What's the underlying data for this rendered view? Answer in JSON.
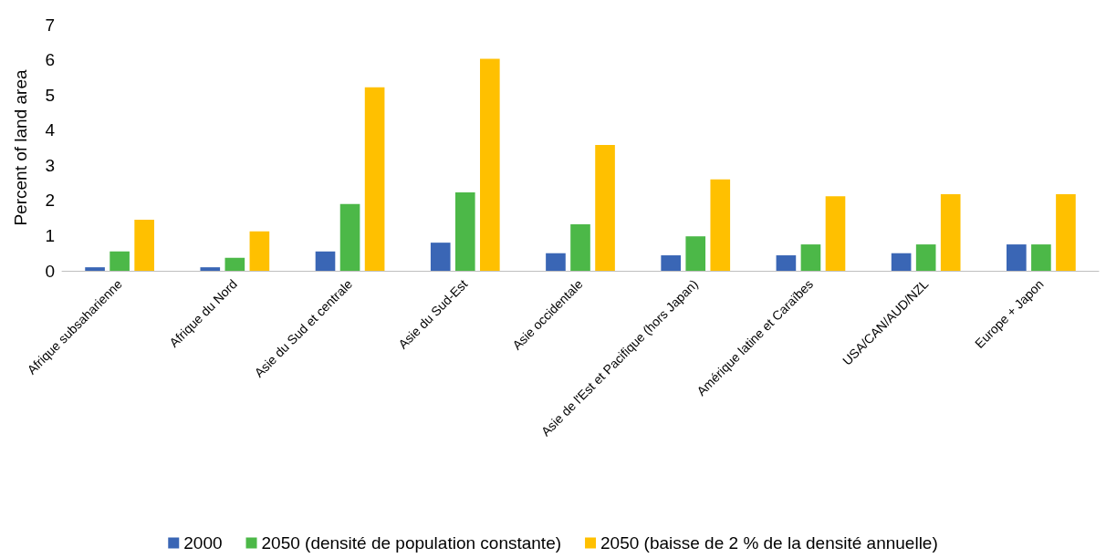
{
  "chart_data": {
    "type": "bar",
    "ylabel": "Percent of land area",
    "categories": [
      "Afrique subsaharienne",
      "Afrique du Nord",
      "Asie du Sud et centrale",
      "Asie du Sud-Est",
      "Asie occidentale",
      "Asie de l'Est et Pacifique (hors Japan)",
      "Amérique latine et Caraïbes",
      "USA/CAN/AUD/NZL",
      "Europe + Japon"
    ],
    "series": [
      {
        "name": "2000",
        "color": "#3a66b5",
        "values": [
          0.1,
          0.1,
          0.55,
          0.8,
          0.5,
          0.44,
          0.44,
          0.5,
          0.75
        ]
      },
      {
        "name": "2050 (densité de population constante)",
        "color": "#4cb848",
        "values": [
          0.55,
          0.37,
          1.9,
          2.23,
          1.32,
          0.98,
          0.75,
          0.75,
          0.75
        ]
      },
      {
        "name": "2050 (baisse de 2 % de la densité annuelle)",
        "color": "#ffc000",
        "values": [
          1.45,
          1.12,
          5.22,
          6.03,
          3.58,
          2.6,
          2.12,
          2.18,
          2.18
        ]
      }
    ],
    "ylim": [
      0,
      7
    ],
    "yticks": [
      0,
      1,
      2,
      3,
      4,
      5,
      6,
      7
    ],
    "grid": false,
    "legend": "bottom"
  }
}
